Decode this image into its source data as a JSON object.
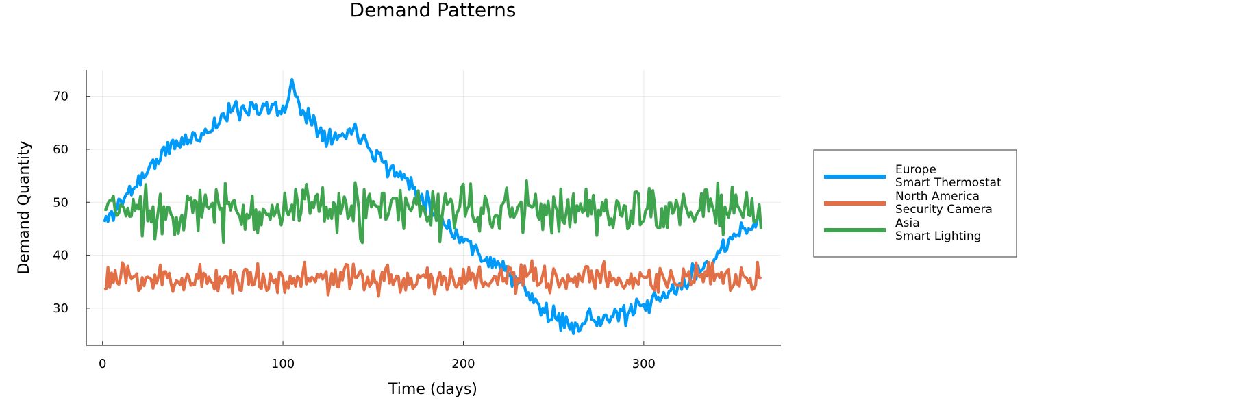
{
  "chart_data": {
    "type": "line",
    "title": "Demand Patterns",
    "xlabel": "Time (days)",
    "ylabel": "Demand Quantity",
    "xlim": [
      -9,
      376
    ],
    "ylim": [
      23,
      75
    ],
    "xticks": [
      0,
      100,
      200,
      300
    ],
    "yticks": [
      30,
      40,
      50,
      60,
      70
    ],
    "grid": true,
    "legend_position": "outside-right",
    "series": [
      {
        "name": "Europe\nSmart Thermostat",
        "name_lines": [
          "Europe",
          "Smart Thermostat"
        ],
        "color": "#009af9",
        "x": [
          1,
          10,
          20,
          30,
          40,
          50,
          60,
          70,
          80,
          90,
          100,
          105,
          110,
          120,
          130,
          140,
          150,
          160,
          170,
          180,
          190,
          200,
          210,
          220,
          230,
          240,
          250,
          260,
          270,
          280,
          290,
          300,
          310,
          320,
          330,
          340,
          350,
          360,
          365
        ],
        "y": [
          46,
          50,
          54,
          58,
          61,
          62,
          64,
          67,
          68,
          68,
          67,
          72,
          68,
          64,
          62,
          64,
          60,
          56,
          54,
          50,
          46,
          43,
          40,
          38,
          35,
          31,
          28,
          27,
          28,
          28,
          29,
          30,
          32,
          34,
          37,
          40,
          43,
          46,
          48
        ],
        "noise": 2.8,
        "seed": 11
      },
      {
        "name": "North America\nSecurity Camera",
        "name_lines": [
          "North America",
          "Security Camera"
        ],
        "color": "#e26f46",
        "x": [
          1,
          365
        ],
        "y": [
          35.5,
          35.5
        ],
        "noise": 4.2,
        "seed": 23
      },
      {
        "name": "Asia\nSmart Lighting",
        "name_lines": [
          "Asia",
          "Smart Lighting"
        ],
        "color": "#3ea44e",
        "x": [
          1,
          365
        ],
        "y": [
          48.5,
          48.5
        ],
        "noise": 7.0,
        "seed": 37
      }
    ]
  }
}
